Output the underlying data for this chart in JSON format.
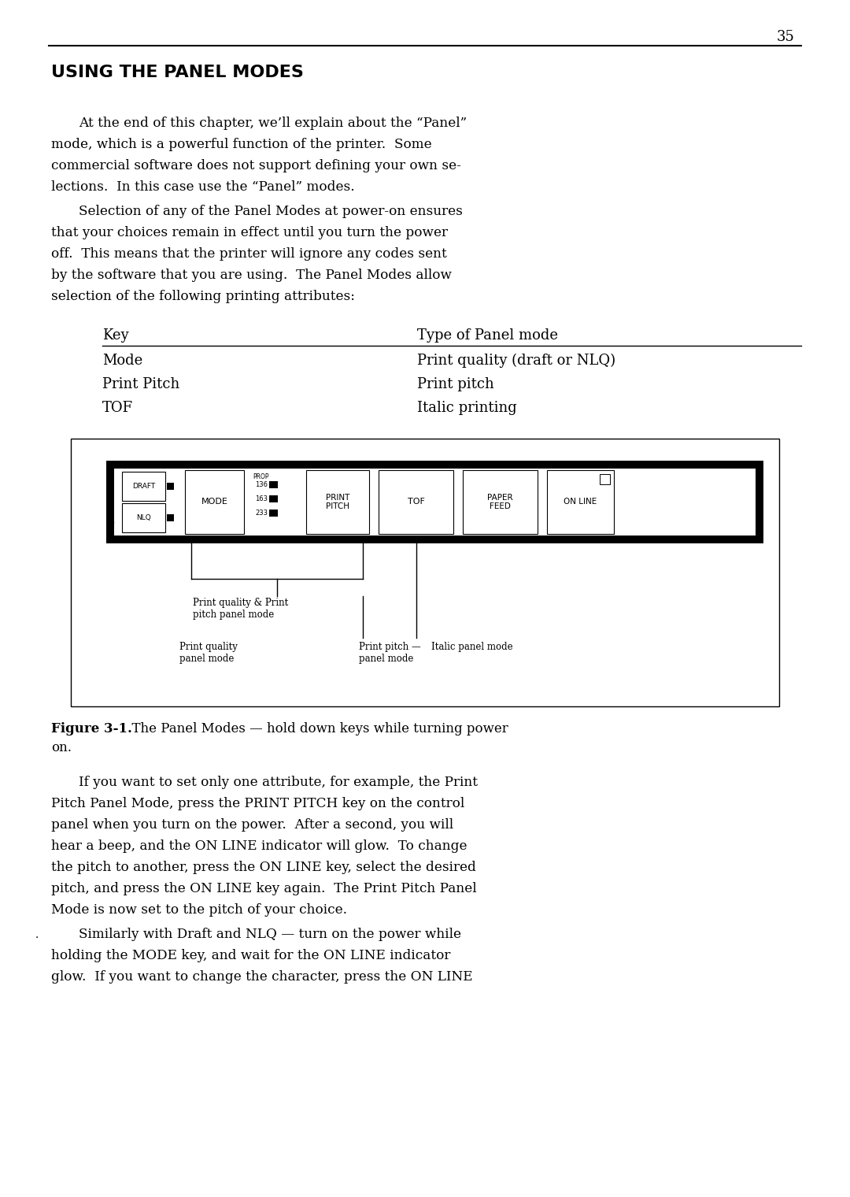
{
  "page_number": "35",
  "bg_color": "#ffffff",
  "text_color": "#000000",
  "title": "USING THE PANEL MODES",
  "para1_lines": [
    "At the end of this chapter, we’ll explain about the “Panel”",
    "mode, which is a powerful function of the printer.  Some",
    "commercial software does not support defining your own se-",
    "lections.  In this case use the “Panel” modes."
  ],
  "para2_lines": [
    "Selection of any of the Panel Modes at power-on ensures",
    "that your choices remain in effect until you turn the power",
    "off.  This means that the printer will ignore any codes sent",
    "by the software that you are using.  The Panel Modes allow",
    "selection of the following printing attributes:"
  ],
  "table_header_col1": "Key",
  "table_header_col2": "Type of Panel mode",
  "table_rows": [
    [
      "Mode",
      "Print quality (draft or NLQ)"
    ],
    [
      "Print Pitch",
      "Print pitch"
    ],
    [
      "TOF",
      "Italic printing"
    ]
  ],
  "para3_lines": [
    "If you want to set only one attribute, for example, the Print",
    "Pitch Panel Mode, press the PRINT PITCH key on the control",
    "panel when you turn on the power.  After a second, you will",
    "hear a beep, and the ON LINE indicator will glow.  To change",
    "the pitch to another, press the ON LINE key, select the desired",
    "pitch, and press the ON LINE key again.  The Print Pitch Panel",
    "Mode is now set to the pitch of your choice."
  ],
  "para4_lines": [
    "Similarly with Draft and NLQ — turn on the power while",
    "holding the MODE key, and wait for the ON LINE indicator",
    "glow.  If you want to change the character, press the ON LINE"
  ]
}
